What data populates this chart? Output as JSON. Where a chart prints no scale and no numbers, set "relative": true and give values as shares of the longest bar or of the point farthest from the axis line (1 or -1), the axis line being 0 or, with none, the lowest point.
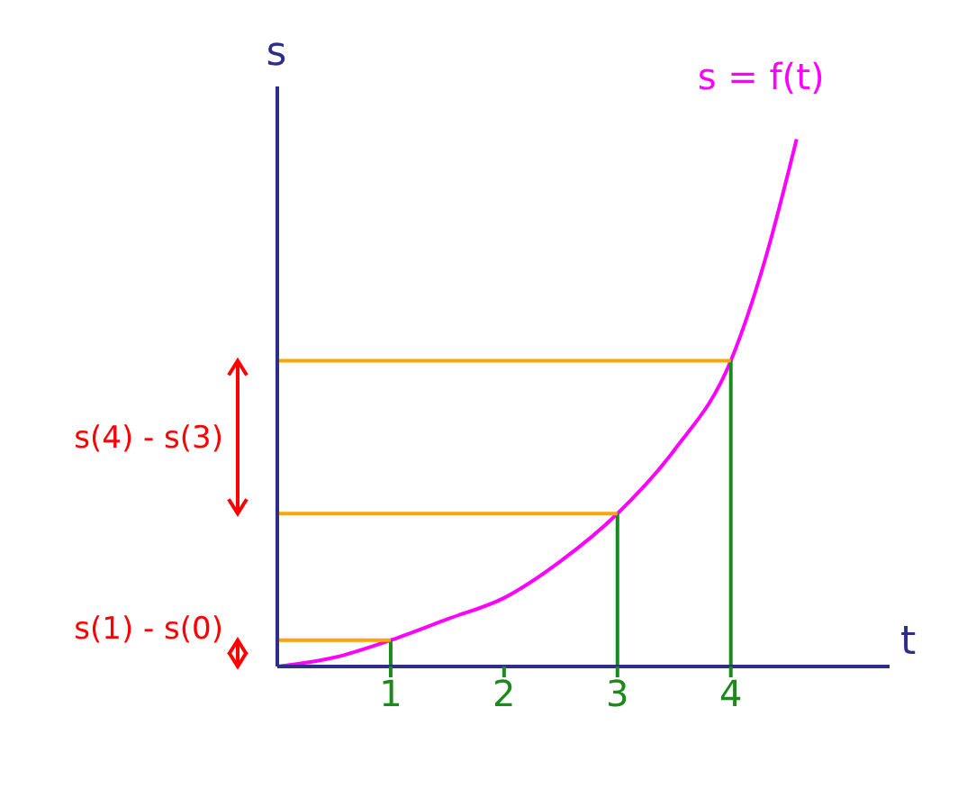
{
  "chart_data": {
    "type": "line",
    "relative": true,
    "xlabel": "t",
    "ylabel": "s",
    "x": [
      0,
      0.5,
      1,
      1.5,
      2,
      2.5,
      3,
      3.5,
      4,
      4.3,
      4.58
    ],
    "series": [
      {
        "color": "#ff00ff",
        "values": [
          0,
          0.017,
          0.05,
          0.09,
          0.13,
          0.2,
          0.29,
          0.41,
          0.58,
          0.77,
          1
        ]
      },
      {
        "color": "#1a8a1a",
        "x": [
          1,
          1
        ],
        "values": [
          0,
          0.05
        ]
      },
      {
        "color": "#1a8a1a",
        "x": [
          3,
          3
        ],
        "values": [
          0,
          0.29
        ]
      },
      {
        "color": "#1a8a1a",
        "x": [
          4,
          4
        ],
        "values": [
          0,
          0.58
        ]
      },
      {
        "color": "#ffa500",
        "x": [
          0,
          1
        ],
        "values": [
          0.05,
          0.05
        ]
      },
      {
        "color": "#ffa500",
        "x": [
          0,
          3
        ],
        "values": [
          0.29,
          0.29
        ]
      },
      {
        "color": "#ffa500",
        "x": [
          0,
          4
        ],
        "values": [
          0.58,
          0.58
        ]
      }
    ],
    "xlim": [
      0,
      5.4
    ],
    "xticks": [
      1,
      2,
      3,
      4
    ],
    "marker": "none",
    "line_style": "solid",
    "annotations": [
      "s = f(t)",
      "s(4) - s(3)",
      "s(1) - s(0)"
    ]
  }
}
